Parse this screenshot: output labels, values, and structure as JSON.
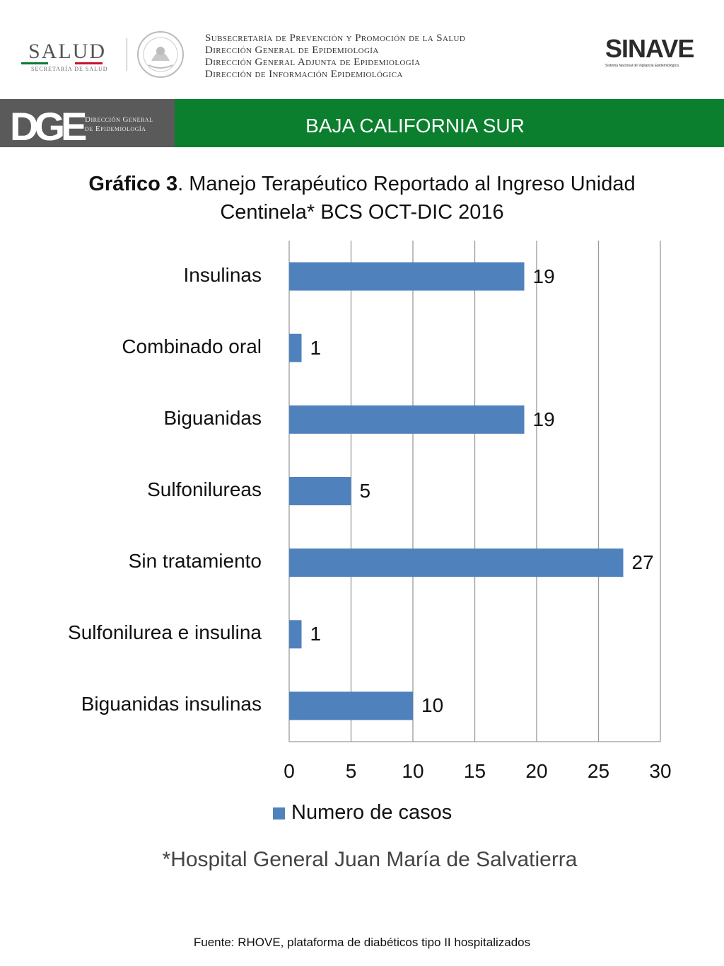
{
  "header": {
    "salud_word": "SALUD",
    "salud_sub": "SECRETARÍA DE SALUD",
    "seal_icon": "mexican-coat-of-arms-icon",
    "lines": [
      "Subsecretaría de Prevención y Promoción de la Salud",
      "Dirección General de Epidemiología",
      "Dirección General Adjunta de Epidemiología",
      "Dirección de Información Epidemiológica"
    ],
    "sinave_word": "SINAVE",
    "sinave_sub": "Sistema Nacional de Vigilancia Epidemiológica"
  },
  "band": {
    "dge": "DGE",
    "dge_sub_1": "Dirección General",
    "dge_sub_2": "de Epidemiología",
    "state": "BAJA CALIFORNIA SUR",
    "colors": {
      "gray": "#5a5a5a",
      "green": "#0b7f2d"
    }
  },
  "title": {
    "bold": "Gráfico 3",
    "rest": ". Manejo Terapéutico Reportado al Ingreso Unidad",
    "line2": "Centinela* BCS OCT-DIC 2016"
  },
  "chart_data": {
    "type": "bar",
    "orientation": "horizontal",
    "categories": [
      "Insulinas",
      "Combinado oral",
      "Biguanidas",
      "Sulfonilureas",
      "Sin tratamiento",
      "Sulfonilurea e insulina",
      "Biguanidas insulinas"
    ],
    "series": [
      {
        "name": "Numero de casos",
        "values": [
          19,
          1,
          19,
          5,
          27,
          1,
          10
        ],
        "color": "#4f81bd"
      }
    ],
    "xlim": [
      0,
      30
    ],
    "xticks": [
      0,
      5,
      10,
      15,
      20,
      25,
      30
    ],
    "grid": true,
    "legend": "bottom"
  },
  "note": "*Hospital General Juan María de Salvatierra",
  "source": "Fuente: RHOVE, plataforma de diabéticos tipo II hospitalizados"
}
